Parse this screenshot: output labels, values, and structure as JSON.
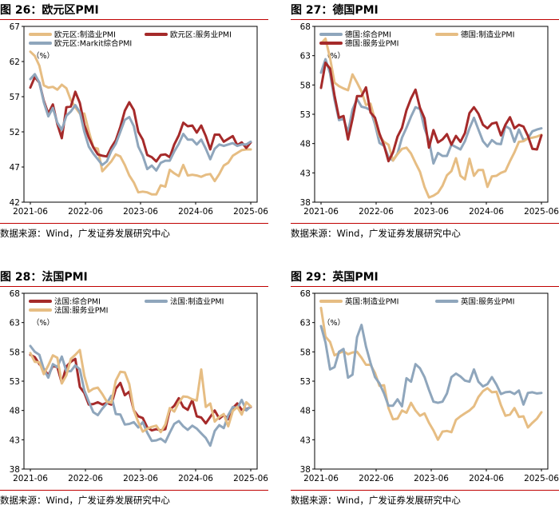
{
  "source_text": "数据来源：Wind，广发证券发展研究中心",
  "colors": {
    "rule": "#c00000",
    "gold": "#e6bd83",
    "maroon": "#a52a2a",
    "slate": "#8fa6bc"
  },
  "chart_data": [
    {
      "type": "line",
      "title": "图 26：欧元区PMI",
      "unit": "（%）",
      "x_ticks": [
        "2021-06",
        "2022-06",
        "2023-06",
        "2024-06",
        "2025-06"
      ],
      "y_ticks": [
        42,
        47,
        52,
        57,
        62,
        67
      ],
      "ylim": [
        42,
        67
      ],
      "legend": [
        {
          "series": 0,
          "row": 0,
          "col": 0
        },
        {
          "series": 1,
          "row": 0,
          "col": 1
        },
        {
          "series": 2,
          "row": 1,
          "col": 0
        }
      ],
      "series": [
        {
          "name": "欧元区:制造业PMI",
          "color": "#e6bd83",
          "values": [
            63.4,
            62.8,
            61.4,
            58.6,
            58.3,
            58.4,
            58.0,
            58.7,
            58.2,
            56.5,
            55.5,
            54.6,
            54.6,
            52.1,
            49.8,
            49.6,
            46.4,
            47.1,
            47.8,
            48.8,
            48.5,
            47.3,
            45.8,
            44.8,
            43.4,
            43.5,
            43.4,
            43.1,
            43.1,
            44.4,
            44.2,
            46.6,
            46.1,
            45.7,
            47.3,
            45.8,
            45.9,
            45.8,
            45.6,
            45.9,
            46.0,
            45.0,
            46.0,
            47.2,
            47.6,
            48.6,
            49.0,
            49.4,
            49.5,
            49.5
          ]
        },
        {
          "name": "欧元区:服务业PMI",
          "color": "#a52a2a",
          "values": [
            58.3,
            59.8,
            59.0,
            56.4,
            54.6,
            55.9,
            53.1,
            51.1,
            55.5,
            55.6,
            57.7,
            56.1,
            53.0,
            51.2,
            49.8,
            48.8,
            48.6,
            48.5,
            49.8,
            50.8,
            52.7,
            55.0,
            56.2,
            55.1,
            52.0,
            50.9,
            48.7,
            48.4,
            47.8,
            48.7,
            48.8,
            48.4,
            50.2,
            51.5,
            53.3,
            52.8,
            52.9,
            51.9,
            52.9,
            51.4,
            49.5,
            51.6,
            51.6,
            50.6,
            51.0,
            51.4,
            50.1,
            50.5,
            49.7,
            50.5
          ]
        },
        {
          "name": "欧元区:Markit综合PMI",
          "color": "#8fa6bc",
          "values": [
            59.5,
            60.2,
            59.0,
            56.2,
            54.2,
            55.4,
            53.3,
            52.3,
            54.3,
            54.9,
            55.8,
            54.8,
            52.0,
            49.9,
            48.9,
            48.1,
            47.3,
            47.8,
            49.3,
            50.3,
            52.0,
            53.7,
            54.1,
            52.8,
            49.9,
            48.6,
            46.7,
            47.2,
            46.5,
            47.6,
            47.9,
            47.9,
            49.2,
            50.3,
            51.7,
            50.9,
            50.9,
            50.2,
            50.9,
            49.6,
            48.1,
            49.6,
            50.2,
            50.0,
            50.2,
            50.4,
            50.0,
            50.2,
            50.2,
            50.6
          ]
        }
      ]
    },
    {
      "type": "line",
      "title": "图 27：德国PMI",
      "unit": "（%）",
      "x_ticks": [
        "2021-06",
        "2022-06",
        "2023-06",
        "2024-06",
        "2025-06"
      ],
      "y_ticks": [
        38,
        43,
        48,
        53,
        58,
        63,
        68
      ],
      "ylim": [
        38,
        68
      ],
      "legend": [
        {
          "series": 0,
          "row": 0,
          "col": 0
        },
        {
          "series": 1,
          "row": 0,
          "col": 1
        },
        {
          "series": 2,
          "row": 1,
          "col": 0
        }
      ],
      "series": [
        {
          "name": "德国:综合PMI",
          "color": "#8fa6bc",
          "values": [
            60.1,
            62.4,
            60.0,
            55.5,
            52.0,
            52.2,
            49.9,
            53.8,
            55.6,
            54.3,
            54.1,
            53.7,
            51.3,
            48.1,
            47.6,
            45.7,
            45.1,
            46.3,
            49.0,
            50.7,
            52.6,
            54.2,
            53.9,
            50.6,
            48.5,
            44.6,
            46.4,
            45.9,
            45.9,
            47.8,
            47.4,
            47.0,
            48.4,
            50.6,
            52.4,
            50.4,
            48.4,
            47.5,
            48.6,
            48.0,
            47.9,
            51.0,
            50.5,
            48.3,
            50.4,
            48.6,
            48.9,
            50.1,
            50.4,
            50.6
          ]
        },
        {
          "name": "德国:制造业PMI",
          "color": "#e6bd83",
          "values": [
            65.1,
            65.9,
            62.6,
            58.4,
            57.8,
            57.4,
            57.1,
            59.8,
            58.4,
            56.9,
            54.6,
            54.8,
            52.0,
            49.3,
            48.3,
            47.8,
            45.1,
            46.2,
            47.1,
            47.3,
            46.3,
            44.7,
            43.2,
            40.6,
            38.8,
            39.1,
            39.6,
            40.8,
            42.6,
            43.3,
            45.5,
            42.5,
            41.9,
            45.4,
            42.5,
            43.5,
            43.5,
            40.6,
            42.4,
            42.5,
            43.0,
            43.3,
            45.0,
            46.5,
            48.3,
            48.4,
            48.9,
            49.0,
            49.2,
            49.5
          ]
        },
        {
          "name": "德国:服务业PMI",
          "color": "#a52a2a",
          "values": [
            57.5,
            61.8,
            60.8,
            56.2,
            52.4,
            52.7,
            48.7,
            52.2,
            56.1,
            56.1,
            57.6,
            53.3,
            52.4,
            49.7,
            47.7,
            45.0,
            46.5,
            49.2,
            50.7,
            53.7,
            55.7,
            57.2,
            54.1,
            52.3,
            47.3,
            50.3,
            48.2,
            48.7,
            49.6,
            47.8,
            49.3,
            48.3,
            49.8,
            53.2,
            54.2,
            53.1,
            51.2,
            50.6,
            51.4,
            51.6,
            49.4,
            51.2,
            52.5,
            50.6,
            51.2,
            50.9,
            49.3,
            47.1,
            47.0,
            49.4
          ]
        }
      ]
    },
    {
      "type": "line",
      "title": "图 28：法国PMI",
      "unit": "（%）",
      "x_ticks": [
        "2021-06",
        "2022-06",
        "2023-06",
        "2024-06",
        "2025-06"
      ],
      "y_ticks": [
        38,
        43,
        48,
        53,
        58,
        63,
        68
      ],
      "ylim": [
        38,
        68
      ],
      "legend": [
        {
          "series": 0,
          "row": 0,
          "col": 0
        },
        {
          "series": 1,
          "row": 0,
          "col": 1
        },
        {
          "series": 2,
          "row": 1,
          "col": 0
        }
      ],
      "series": [
        {
          "name": "法国:综合PMI",
          "color": "#a52a2a",
          "values": [
            57.5,
            57.1,
            55.9,
            55.1,
            54.0,
            55.6,
            55.4,
            52.7,
            55.5,
            56.3,
            56.8,
            52.0,
            51.0,
            49.0,
            49.1,
            49.4,
            49.0,
            49.3,
            49.0,
            51.7,
            52.7,
            50.6,
            51.2,
            48.0,
            47.0,
            46.7,
            45.1,
            44.6,
            44.8,
            44.6,
            44.8,
            48.1,
            48.8,
            50.1,
            48.6,
            48.1,
            49.8,
            47.0,
            46.8,
            45.8,
            46.9,
            48.0,
            46.6,
            47.2,
            46.5,
            48.4,
            49.2,
            48.1,
            48.2,
            48.6
          ]
        },
        {
          "name": "法国:制造业PMI",
          "color": "#8fa6bc",
          "values": [
            59.0,
            58.0,
            57.5,
            55.0,
            53.6,
            55.9,
            55.4,
            57.2,
            54.7,
            54.7,
            55.7,
            55.0,
            51.4,
            49.5,
            47.7,
            47.2,
            48.3,
            49.2,
            50.5,
            47.4,
            47.3,
            45.6,
            45.7,
            46.0,
            45.1,
            46.0,
            44.2,
            42.8,
            42.9,
            43.2,
            42.6,
            44.2,
            45.7,
            46.2,
            45.3,
            44.7,
            45.4,
            44.9,
            44.1,
            43.3,
            42.0,
            44.5,
            45.5,
            45.0,
            47.2,
            48.6,
            48.4,
            49.8,
            48.0,
            48.7
          ]
        },
        {
          "name": "法国:服务业PMI",
          "color": "#e6bd83",
          "values": [
            57.8,
            56.3,
            56.2,
            54.2,
            55.7,
            57.4,
            57.0,
            52.6,
            54.0,
            56.8,
            57.5,
            58.3,
            53.9,
            51.2,
            51.7,
            51.9,
            50.8,
            49.5,
            49.3,
            53.1,
            54.6,
            54.5,
            52.5,
            48.0,
            46.0,
            44.4,
            44.9,
            45.2,
            45.4,
            44.3,
            45.6,
            48.4,
            47.8,
            49.4,
            50.4,
            50.3,
            49.9,
            49.7,
            55.0,
            48.6,
            49.2,
            46.1,
            46.9,
            47.4,
            45.3,
            47.9,
            48.6,
            47.3,
            49.4,
            48.7
          ]
        }
      ]
    },
    {
      "type": "line",
      "title": "图 29：英国PMI",
      "unit": "（%）",
      "x_ticks": [
        "2021-06",
        "2022-06",
        "2023-06",
        "2024-06",
        "2025-06"
      ],
      "y_ticks": [
        38,
        43,
        48,
        53,
        58,
        63,
        68
      ],
      "ylim": [
        38,
        68
      ],
      "legend": [
        {
          "series": 0,
          "row": 0,
          "col": 0
        },
        {
          "series": 1,
          "row": 0,
          "col": 1
        }
      ],
      "series": [
        {
          "name": "英国:制造业PMI",
          "color": "#e6bd83",
          "values": [
            65.5,
            60.6,
            59.7,
            57.4,
            57.8,
            58.1,
            57.6,
            57.9,
            58.0,
            57.0,
            55.8,
            55.8,
            54.4,
            52.2,
            52.3,
            48.4,
            46.5,
            46.6,
            48.0,
            47.6,
            49.3,
            48.0,
            47.1,
            47.5,
            45.9,
            44.6,
            43.0,
            44.4,
            44.5,
            44.3,
            46.4,
            47.0,
            47.5,
            48.0,
            48.7,
            50.3,
            51.3,
            51.8,
            51.1,
            51.2,
            48.9,
            47.1,
            47.3,
            48.4,
            46.9,
            47.0,
            45.1,
            45.9,
            46.6,
            47.7
          ]
        },
        {
          "name": "英国:服务业PMI",
          "color": "#8fa6bc",
          "values": [
            62.4,
            59.6,
            55.0,
            55.4,
            58.0,
            58.5,
            53.6,
            54.1,
            60.5,
            62.6,
            58.9,
            56.1,
            53.7,
            52.6,
            50.9,
            48.8,
            48.8,
            49.9,
            48.7,
            53.5,
            52.9,
            55.9,
            55.2,
            53.7,
            51.5,
            49.5,
            49.3,
            49.5,
            50.9,
            53.7,
            54.3,
            53.8,
            53.1,
            52.9,
            55.0,
            52.9,
            52.1,
            52.5,
            53.7,
            52.4,
            50.8,
            51.1,
            51.2,
            50.8,
            51.4,
            49.0,
            51.0,
            51.1,
            50.9,
            51.0
          ]
        }
      ]
    }
  ]
}
